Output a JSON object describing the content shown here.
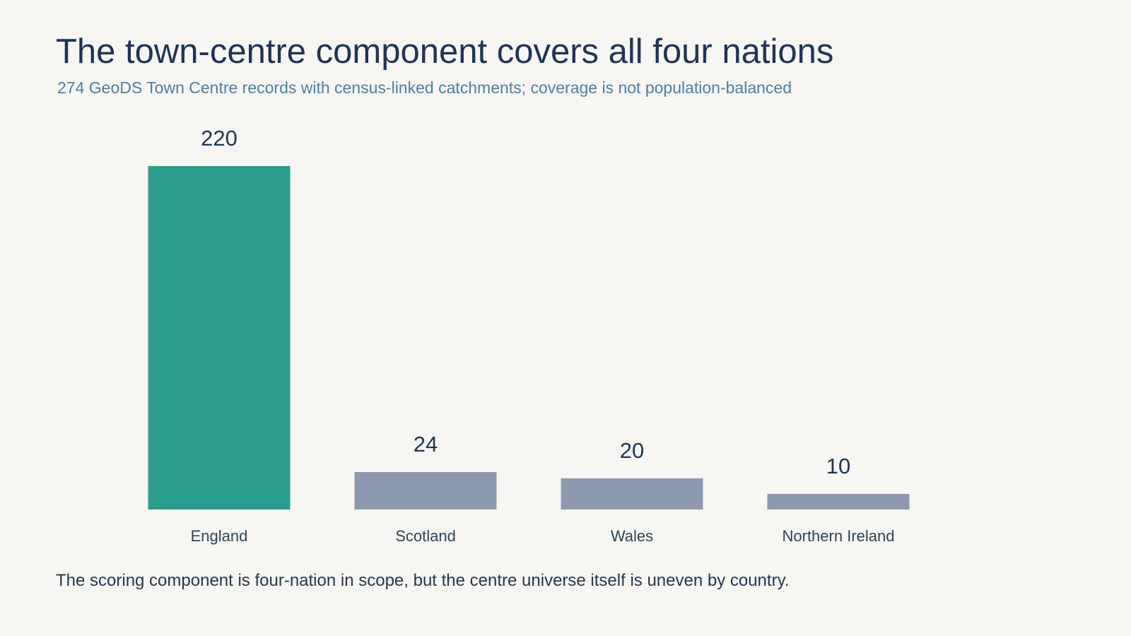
{
  "header": {
    "title": "The town-centre component covers all four nations",
    "subtitle": "274 GeoDS Town Centre records with census-linked catchments; coverage is not population-balanced"
  },
  "footnote": "The scoring component is four-nation in scope, but the centre universe itself is uneven by country.",
  "chart_data": {
    "type": "bar",
    "title": "The town-centre component covers all four nations",
    "subtitle": "274 GeoDS Town Centre records with census-linked catchments; coverage is not population-balanced",
    "categories": [
      "England",
      "Scotland",
      "Wales",
      "Northern Ireland"
    ],
    "values": [
      220,
      24,
      20,
      10
    ],
    "value_labels": [
      "220",
      "24",
      "20",
      "10"
    ],
    "xlabel": "",
    "ylabel": "",
    "ylim": [
      0,
      220
    ],
    "grid": false,
    "legend": "none",
    "colors": {
      "highlight": "#2a9d8c",
      "default": "#8d99af"
    },
    "highlight_category": "England"
  }
}
